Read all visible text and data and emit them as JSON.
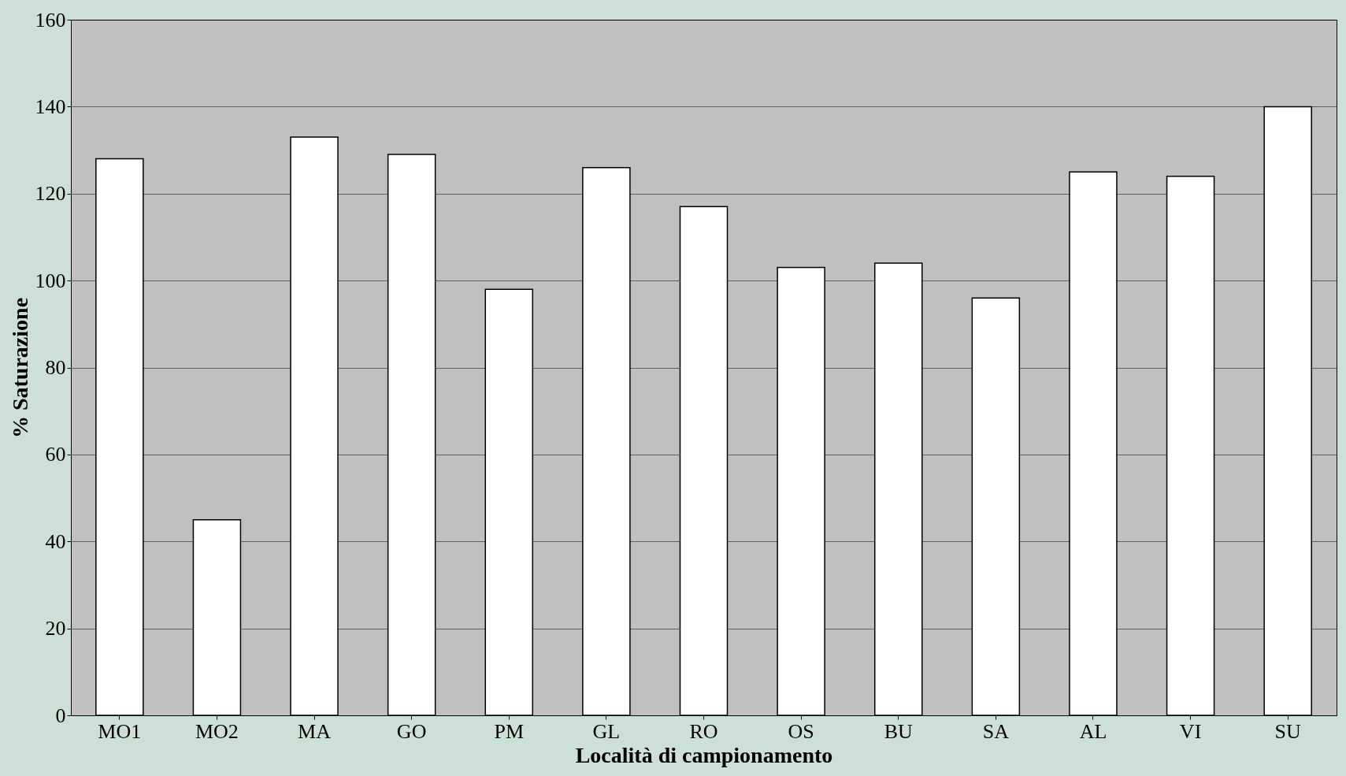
{
  "chart_data": {
    "type": "bar",
    "xlabel": "Località di campionamento",
    "ylabel": "% Saturazione",
    "categories": [
      "MO1",
      "MO2",
      "MA",
      "GO",
      "PM",
      "GL",
      "RO",
      "OS",
      "BU",
      "SA",
      "AL",
      "VI",
      "SU"
    ],
    "values": [
      128,
      45,
      133,
      129,
      98,
      126,
      117,
      103,
      104,
      96,
      125,
      124,
      140
    ],
    "color": "#ffffff",
    "ylim": [
      0,
      160
    ],
    "yticks": [
      0,
      20,
      40,
      60,
      80,
      100,
      120,
      140,
      160
    ],
    "grid": "y"
  }
}
